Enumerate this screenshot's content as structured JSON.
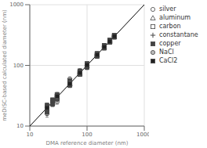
{
  "chart_data": {
    "type": "scatter",
    "xlabel": "DMA reference diameter (nm)",
    "ylabel": "meDiSC-based calculated diameter (nm)",
    "log": true,
    "grid": true,
    "legend": "right",
    "xlim": [
      10,
      1000
    ],
    "ylim": [
      10,
      1000
    ],
    "xticks": [
      10,
      100,
      1000
    ],
    "yticks": [
      10,
      100,
      1000
    ],
    "series": [
      {
        "type": "line",
        "line_style": "solid",
        "color": "#000000",
        "x": [
          10,
          1000
        ],
        "values": [
          10,
          1000
        ]
      },
      {
        "name": "silver",
        "marker": "circle-open",
        "color": "#444444",
        "x": [
          20,
          20,
          20,
          30,
          30,
          30,
          50,
          50,
          75,
          75,
          100,
          100,
          150,
          150,
          200,
          200,
          250,
          300
        ],
        "values": [
          16,
          18,
          21,
          25,
          28,
          31,
          52,
          60,
          73,
          82,
          93,
          102,
          143,
          153,
          198,
          212,
          248,
          298
        ],
        "yerr": [
          2,
          2,
          2,
          2,
          2,
          2,
          4,
          4,
          5,
          5,
          8,
          8,
          10,
          10,
          15,
          15,
          20,
          25
        ]
      },
      {
        "name": "aluminum",
        "marker": "triangle-open",
        "color": "#444444",
        "x": [
          25,
          30,
          50,
          75,
          100,
          150,
          200,
          250,
          300
        ],
        "values": [
          24,
          30,
          49,
          74,
          99,
          149,
          200,
          250,
          300
        ],
        "yerr": [
          3,
          3,
          4,
          6,
          8,
          12,
          15,
          20,
          25
        ]
      },
      {
        "name": "carbon",
        "marker": "square-open",
        "color": "#444444",
        "x": [
          25,
          30,
          50,
          75,
          100,
          150,
          200,
          250,
          300
        ],
        "values": [
          25,
          31,
          51,
          75,
          100,
          151,
          199,
          251,
          299
        ],
        "yerr": [
          3,
          3,
          4,
          5,
          8,
          10,
          15,
          20,
          25
        ]
      },
      {
        "name": "constantane",
        "marker": "plus",
        "color": "#444444",
        "x": [
          50,
          75,
          100,
          150,
          200,
          250,
          300
        ],
        "values": [
          48,
          74,
          99,
          147,
          203,
          249,
          302
        ],
        "yerr": [
          4,
          5,
          8,
          10,
          15,
          20,
          25
        ]
      },
      {
        "name": "copper",
        "marker": "square",
        "color": "#444444",
        "x": [
          20,
          20,
          25,
          25,
          30,
          30,
          50,
          50,
          75,
          75,
          100,
          100,
          150,
          150,
          200,
          200,
          250,
          250,
          300,
          300
        ],
        "values": [
          17,
          22,
          23,
          27,
          28,
          33,
          47,
          56,
          71,
          81,
          93,
          107,
          141,
          157,
          193,
          213,
          241,
          261,
          293,
          313
        ],
        "yerr": [
          2,
          2,
          2,
          2,
          3,
          3,
          4,
          4,
          5,
          5,
          7,
          7,
          10,
          10,
          14,
          14,
          18,
          18,
          22,
          22
        ]
      },
      {
        "name": "NaCl",
        "marker": "circle",
        "color": "#bbbbbb",
        "x": [
          20,
          30,
          50,
          75,
          100,
          150,
          200,
          250,
          300
        ],
        "values": [
          20,
          30,
          51,
          74,
          100,
          150,
          200,
          250,
          300
        ],
        "yerr": [
          2,
          3,
          4,
          5,
          8,
          10,
          15,
          18,
          22
        ]
      },
      {
        "name": "CaCl2",
        "marker": "square",
        "color": "#222222",
        "x": [
          20,
          30,
          50,
          75,
          100,
          150,
          200,
          250,
          300
        ],
        "values": [
          20,
          31,
          50,
          75,
          101,
          149,
          201,
          249,
          301
        ],
        "yerr": [
          2,
          3,
          4,
          5,
          7,
          10,
          14,
          18,
          22
        ]
      }
    ]
  }
}
